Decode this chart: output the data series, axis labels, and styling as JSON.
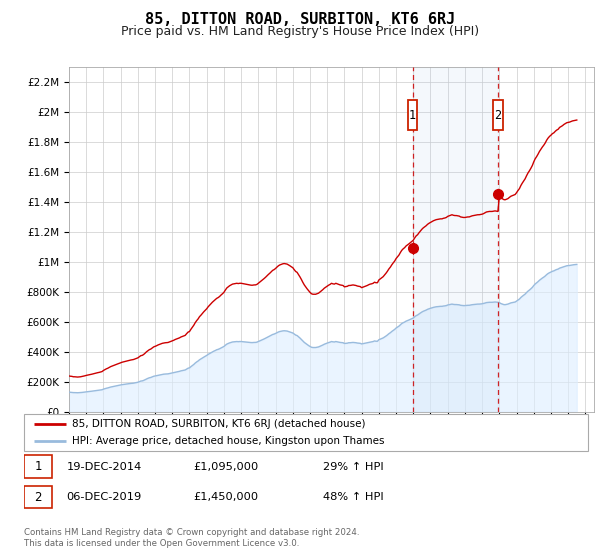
{
  "title": "85, DITTON ROAD, SURBITON, KT6 6RJ",
  "subtitle": "Price paid vs. HM Land Registry's House Price Index (HPI)",
  "title_fontsize": 11,
  "subtitle_fontsize": 9,
  "ylabel_ticks": [
    "£0",
    "£200K",
    "£400K",
    "£600K",
    "£800K",
    "£1M",
    "£1.2M",
    "£1.4M",
    "£1.6M",
    "£1.8M",
    "£2M",
    "£2.2M"
  ],
  "ylabel_values": [
    0,
    200000,
    400000,
    600000,
    800000,
    1000000,
    1200000,
    1400000,
    1600000,
    1800000,
    2000000,
    2200000
  ],
  "ylim": [
    0,
    2300000
  ],
  "xlim_start": 1995.0,
  "xlim_end": 2025.5,
  "sale1_year": 2014.96,
  "sale1_price": 1095000,
  "sale1_label": "1",
  "sale1_date": "19-DEC-2014",
  "sale1_pct": "29%",
  "sale2_year": 2019.92,
  "sale2_price": 1450000,
  "sale2_label": "2",
  "sale2_date": "06-DEC-2019",
  "sale2_pct": "48%",
  "red_line_color": "#cc0000",
  "blue_line_color": "#99bbdd",
  "blue_fill_color": "#ddeeff",
  "grid_color": "#cccccc",
  "background_color": "#ffffff",
  "legend_label_red": "85, DITTON ROAD, SURBITON, KT6 6RJ (detached house)",
  "legend_label_blue": "HPI: Average price, detached house, Kingston upon Thames",
  "footer1": "Contains HM Land Registry data © Crown copyright and database right 2024.",
  "footer2": "This data is licensed under the Open Government Licence v3.0.",
  "hpi_years": [
    1995.0,
    1995.08,
    1995.17,
    1995.25,
    1995.33,
    1995.42,
    1995.5,
    1995.58,
    1995.67,
    1995.75,
    1995.83,
    1995.92,
    1996.0,
    1996.08,
    1996.17,
    1996.25,
    1996.33,
    1996.42,
    1996.5,
    1996.58,
    1996.67,
    1996.75,
    1996.83,
    1996.92,
    1997.0,
    1997.08,
    1997.17,
    1997.25,
    1997.33,
    1997.42,
    1997.5,
    1997.58,
    1997.67,
    1997.75,
    1997.83,
    1997.92,
    1998.0,
    1998.08,
    1998.17,
    1998.25,
    1998.33,
    1998.42,
    1998.5,
    1998.58,
    1998.67,
    1998.75,
    1998.83,
    1998.92,
    1999.0,
    1999.08,
    1999.17,
    1999.25,
    1999.33,
    1999.42,
    1999.5,
    1999.58,
    1999.67,
    1999.75,
    1999.83,
    1999.92,
    2000.0,
    2000.08,
    2000.17,
    2000.25,
    2000.33,
    2000.42,
    2000.5,
    2000.58,
    2000.67,
    2000.75,
    2000.83,
    2000.92,
    2001.0,
    2001.08,
    2001.17,
    2001.25,
    2001.33,
    2001.42,
    2001.5,
    2001.58,
    2001.67,
    2001.75,
    2001.83,
    2001.92,
    2002.0,
    2002.08,
    2002.17,
    2002.25,
    2002.33,
    2002.42,
    2002.5,
    2002.58,
    2002.67,
    2002.75,
    2002.83,
    2002.92,
    2003.0,
    2003.08,
    2003.17,
    2003.25,
    2003.33,
    2003.42,
    2003.5,
    2003.58,
    2003.67,
    2003.75,
    2003.83,
    2003.92,
    2004.0,
    2004.08,
    2004.17,
    2004.25,
    2004.33,
    2004.42,
    2004.5,
    2004.58,
    2004.67,
    2004.75,
    2004.83,
    2004.92,
    2005.0,
    2005.08,
    2005.17,
    2005.25,
    2005.33,
    2005.42,
    2005.5,
    2005.58,
    2005.67,
    2005.75,
    2005.83,
    2005.92,
    2006.0,
    2006.08,
    2006.17,
    2006.25,
    2006.33,
    2006.42,
    2006.5,
    2006.58,
    2006.67,
    2006.75,
    2006.83,
    2006.92,
    2007.0,
    2007.08,
    2007.17,
    2007.25,
    2007.33,
    2007.42,
    2007.5,
    2007.58,
    2007.67,
    2007.75,
    2007.83,
    2007.92,
    2008.0,
    2008.08,
    2008.17,
    2008.25,
    2008.33,
    2008.42,
    2008.5,
    2008.58,
    2008.67,
    2008.75,
    2008.83,
    2008.92,
    2009.0,
    2009.08,
    2009.17,
    2009.25,
    2009.33,
    2009.42,
    2009.5,
    2009.58,
    2009.67,
    2009.75,
    2009.83,
    2009.92,
    2010.0,
    2010.08,
    2010.17,
    2010.25,
    2010.33,
    2010.42,
    2010.5,
    2010.58,
    2010.67,
    2010.75,
    2010.83,
    2010.92,
    2011.0,
    2011.08,
    2011.17,
    2011.25,
    2011.33,
    2011.42,
    2011.5,
    2011.58,
    2011.67,
    2011.75,
    2011.83,
    2011.92,
    2012.0,
    2012.08,
    2012.17,
    2012.25,
    2012.33,
    2012.42,
    2012.5,
    2012.58,
    2012.67,
    2012.75,
    2012.83,
    2012.92,
    2013.0,
    2013.08,
    2013.17,
    2013.25,
    2013.33,
    2013.42,
    2013.5,
    2013.58,
    2013.67,
    2013.75,
    2013.83,
    2013.92,
    2014.0,
    2014.08,
    2014.17,
    2014.25,
    2014.33,
    2014.42,
    2014.5,
    2014.58,
    2014.67,
    2014.75,
    2014.83,
    2014.92,
    2015.0,
    2015.08,
    2015.17,
    2015.25,
    2015.33,
    2015.42,
    2015.5,
    2015.58,
    2015.67,
    2015.75,
    2015.83,
    2015.92,
    2016.0,
    2016.08,
    2016.17,
    2016.25,
    2016.33,
    2016.42,
    2016.5,
    2016.58,
    2016.67,
    2016.75,
    2016.83,
    2016.92,
    2017.0,
    2017.08,
    2017.17,
    2017.25,
    2017.33,
    2017.42,
    2017.5,
    2017.58,
    2017.67,
    2017.75,
    2017.83,
    2017.92,
    2018.0,
    2018.08,
    2018.17,
    2018.25,
    2018.33,
    2018.42,
    2018.5,
    2018.58,
    2018.67,
    2018.75,
    2018.83,
    2018.92,
    2019.0,
    2019.08,
    2019.17,
    2019.25,
    2019.33,
    2019.42,
    2019.5,
    2019.58,
    2019.67,
    2019.75,
    2019.83,
    2019.92,
    2020.0,
    2020.08,
    2020.17,
    2020.25,
    2020.33,
    2020.42,
    2020.5,
    2020.58,
    2020.67,
    2020.75,
    2020.83,
    2020.92,
    2021.0,
    2021.08,
    2021.17,
    2021.25,
    2021.33,
    2021.42,
    2021.5,
    2021.58,
    2021.67,
    2021.75,
    2021.83,
    2021.92,
    2022.0,
    2022.08,
    2022.17,
    2022.25,
    2022.33,
    2022.42,
    2022.5,
    2022.58,
    2022.67,
    2022.75,
    2022.83,
    2022.92,
    2023.0,
    2023.08,
    2023.17,
    2023.25,
    2023.33,
    2023.42,
    2023.5,
    2023.58,
    2023.67,
    2023.75,
    2023.83,
    2023.92,
    2024.0,
    2024.08,
    2024.17,
    2024.25,
    2024.33,
    2024.42,
    2024.5
  ],
  "hpi_values": [
    130000,
    129000,
    128500,
    127000,
    127000,
    126500,
    126000,
    126500,
    127000,
    128000,
    129000,
    130500,
    132000,
    133000,
    134000,
    135000,
    136500,
    138000,
    139000,
    140500,
    142000,
    143000,
    144500,
    146000,
    150000,
    153000,
    156000,
    158000,
    161000,
    164000,
    166000,
    168000,
    170000,
    172000,
    174000,
    176000,
    178000,
    180000,
    181500,
    183000,
    184500,
    186000,
    187000,
    188000,
    189000,
    190000,
    192000,
    194000,
    196000,
    200000,
    204000,
    205000,
    208000,
    213000,
    218000,
    222000,
    226000,
    228000,
    232000,
    236000,
    238000,
    240000,
    243000,
    245000,
    247000,
    249000,
    250000,
    251000,
    251500,
    252000,
    254000,
    256000,
    258000,
    260000,
    263000,
    265000,
    267000,
    269000,
    272000,
    274000,
    276000,
    278000,
    284000,
    290000,
    292000,
    300000,
    308000,
    315000,
    324000,
    332000,
    338000,
    346000,
    352000,
    358000,
    364000,
    370000,
    375000,
    382000,
    388000,
    393000,
    399000,
    404000,
    408000,
    413000,
    416000,
    420000,
    425000,
    430000,
    435000,
    443000,
    451000,
    455000,
    459000,
    462000,
    465000,
    466000,
    467000,
    468000,
    467000,
    468000,
    468000,
    467000,
    466000,
    465000,
    464000,
    463000,
    462000,
    461000,
    461000,
    462000,
    462000,
    464000,
    468000,
    472000,
    476000,
    480000,
    485000,
    490000,
    495000,
    500000,
    505000,
    510000,
    515000,
    518000,
    522000,
    527000,
    532000,
    535000,
    537000,
    539000,
    540000,
    539000,
    538000,
    535000,
    532000,
    528000,
    525000,
    518000,
    511000,
    508000,
    500000,
    491000,
    482000,
    472000,
    462000,
    455000,
    448000,
    441000,
    435000,
    430000,
    428000,
    428000,
    428000,
    430000,
    432000,
    436000,
    440000,
    445000,
    450000,
    454000,
    458000,
    461000,
    464000,
    468000,
    466000,
    465000,
    468000,
    466000,
    464000,
    462000,
    461000,
    460000,
    455000,
    456000,
    457000,
    460000,
    460000,
    461000,
    462000,
    461000,
    460000,
    458000,
    457000,
    456000,
    452000,
    454000,
    456000,
    458000,
    460000,
    463000,
    465000,
    466000,
    468000,
    472000,
    470000,
    470000,
    480000,
    484000,
    488000,
    492000,
    498000,
    505000,
    512000,
    520000,
    527000,
    535000,
    542000,
    549000,
    558000,
    564000,
    571000,
    580000,
    588000,
    594000,
    598000,
    604000,
    608000,
    612000,
    616000,
    620000,
    625000,
    633000,
    641000,
    645000,
    652000,
    659000,
    665000,
    670000,
    674000,
    678000,
    683000,
    687000,
    690000,
    693000,
    696000,
    698000,
    700000,
    701000,
    702000,
    703000,
    703000,
    705000,
    706000,
    708000,
    712000,
    714000,
    716000,
    718000,
    716000,
    715000,
    715000,
    714000,
    713000,
    710000,
    709000,
    708000,
    708000,
    709000,
    710000,
    710000,
    712000,
    714000,
    715000,
    716000,
    717000,
    718000,
    718000,
    719000,
    720000,
    722000,
    725000,
    728000,
    729000,
    730000,
    730000,
    730000,
    731000,
    732000,
    731000,
    730000,
    728000,
    722000,
    718000,
    715000,
    714000,
    716000,
    718000,
    722000,
    726000,
    728000,
    730000,
    732000,
    738000,
    745000,
    752000,
    762000,
    770000,
    778000,
    785000,
    795000,
    805000,
    812000,
    820000,
    830000,
    842000,
    852000,
    860000,
    868000,
    877000,
    885000,
    892000,
    898000,
    906000,
    915000,
    922000,
    928000,
    932000,
    937000,
    940000,
    945000,
    949000,
    952000,
    958000,
    961000,
    964000,
    968000,
    971000,
    974000,
    975000,
    976000,
    978000,
    980000,
    981000,
    982000,
    983000
  ],
  "sale1_hpi_index": 598000,
  "sale2_hpi_index": 732000
}
